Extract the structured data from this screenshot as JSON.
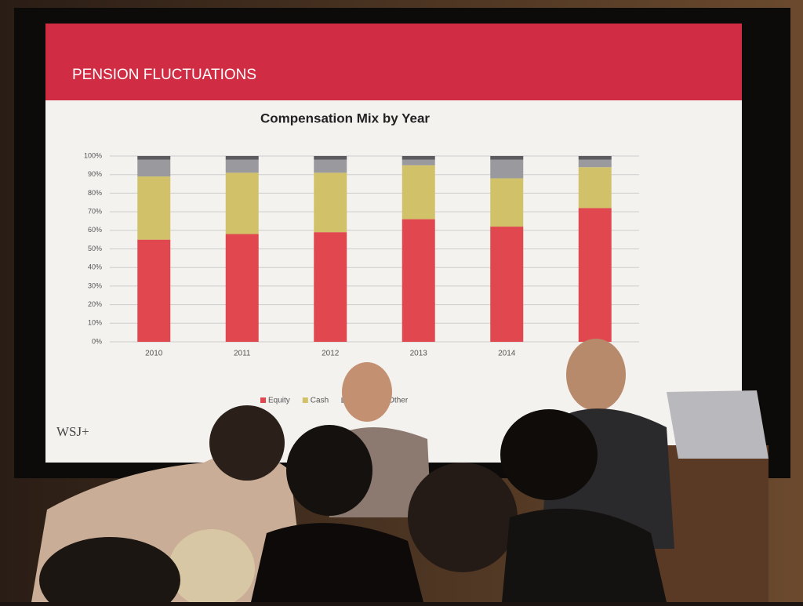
{
  "header": "PENSION FLUCTUATIONS",
  "logo": "WSJ+",
  "chart_data": {
    "type": "stacked_bar",
    "title": "Compensation Mix by Year",
    "categories": [
      "2010",
      "2011",
      "2012",
      "2013",
      "2014",
      null
    ],
    "series": [
      {
        "name": "Equity",
        "color": "#e0474e",
        "values": [
          55,
          58,
          59,
          66,
          62,
          72
        ]
      },
      {
        "name": "Cash",
        "color": "#d1c26a",
        "values": [
          34,
          33,
          32,
          29,
          26,
          22
        ]
      },
      {
        "name": null,
        "color": "#9a9a9e",
        "values": [
          9,
          7,
          7,
          3,
          10,
          4
        ]
      },
      {
        "name": "Other",
        "color": "#5c5c60",
        "values": [
          2,
          2,
          2,
          2,
          2,
          2
        ]
      }
    ],
    "ylim": [
      0,
      100
    ],
    "yticks": [
      {
        "value": 0,
        "label": "0%"
      },
      {
        "value": 10,
        "label": "10%"
      },
      {
        "value": 20,
        "label": "20%"
      },
      {
        "value": 30,
        "label": "30%"
      },
      {
        "value": 40,
        "label": "40%"
      },
      {
        "value": 50,
        "label": "50%"
      },
      {
        "value": 60,
        "label": "60%"
      },
      {
        "value": 70,
        "label": "70%"
      },
      {
        "value": 80,
        "label": "80%"
      },
      {
        "value": 90,
        "label": "90%"
      },
      {
        "value": 100,
        "label": "100%"
      }
    ],
    "grid": true
  }
}
